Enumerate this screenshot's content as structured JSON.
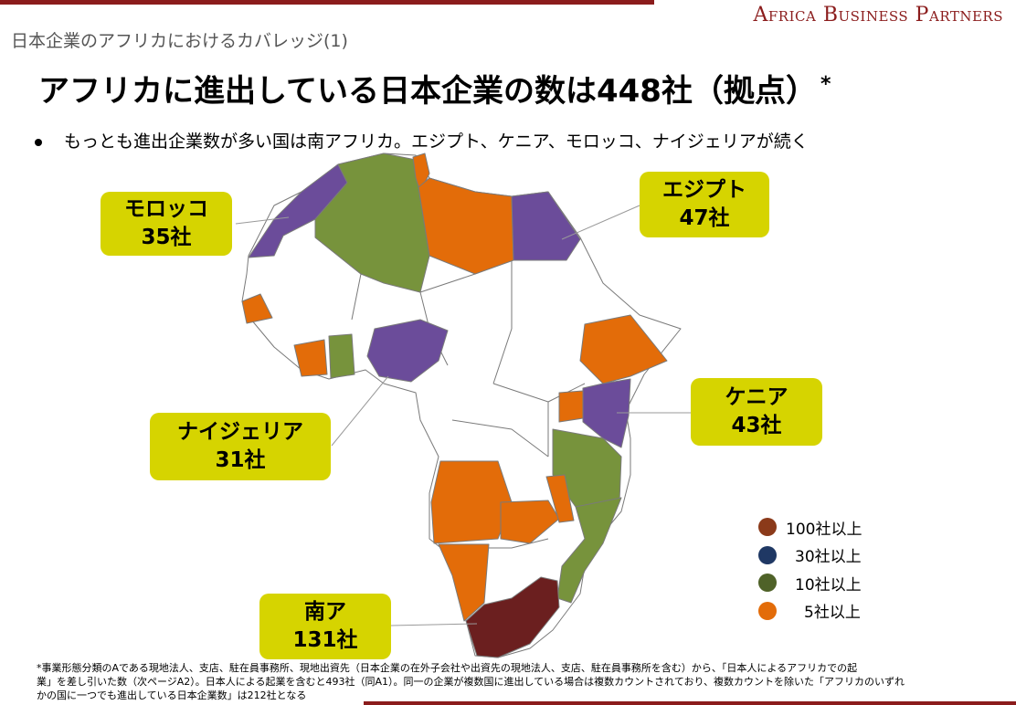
{
  "header": {
    "brand": "Africa Business Partners",
    "section_title": "日本企業のアフリカにおけるカバレッジ(1)",
    "headline": "アフリカに進出している日本企業の数は448社（拠点）",
    "headline_mark": "*",
    "bullet": "もっとも進出企業数が多い国は南アフリカ。エジプト、ケニア、モロッコ、ナイジェリアが続く"
  },
  "colors": {
    "brand": "#8b1c1c",
    "callout": "#d6d400",
    "tier_100": "#8b3a1a",
    "tier_30": "#1f3864",
    "tier_10": "#4f6228",
    "tier_5": "#e36c09",
    "map_100": "#6b1f1f",
    "map_30": "#6b4c9a",
    "map_10": "#77933c",
    "map_5": "#e36c09"
  },
  "callouts": [
    {
      "id": "morocco",
      "country": "モロッコ",
      "count": "35社"
    },
    {
      "id": "egypt",
      "country": "エジプト",
      "count": "47社"
    },
    {
      "id": "kenya",
      "country": "ケニア",
      "count": "43社"
    },
    {
      "id": "nigeria",
      "country": "ナイジェリア",
      "count": "31社"
    },
    {
      "id": "south-africa",
      "country": "南ア",
      "count": "131社"
    }
  ],
  "legend": [
    {
      "label": "100社以上",
      "color": "#8b3a1a"
    },
    {
      "label": "30社以上",
      "color": "#1f3864"
    },
    {
      "label": "10社以上",
      "color": "#4f6228"
    },
    {
      "label": "5社以上",
      "color": "#e36c09"
    }
  ],
  "footnote": [
    "*事業形態分類のAである現地法人、支店、駐在員事務所、現地出資先（日本企業の在外子会社や出資先の現地法人、支店、駐在員事務所を含む）から、「日本人によるアフリカでの起",
    "業」を差し引いた数（次ページA2）。日本人による起業を含むと493社（同A1）。同一の企業が複数国に進出している場合は複数カウントされており、複数カウントを除いた「アフリカのいずれ",
    "かの国に一つでも進出している日本企業数」は212社となる"
  ]
}
